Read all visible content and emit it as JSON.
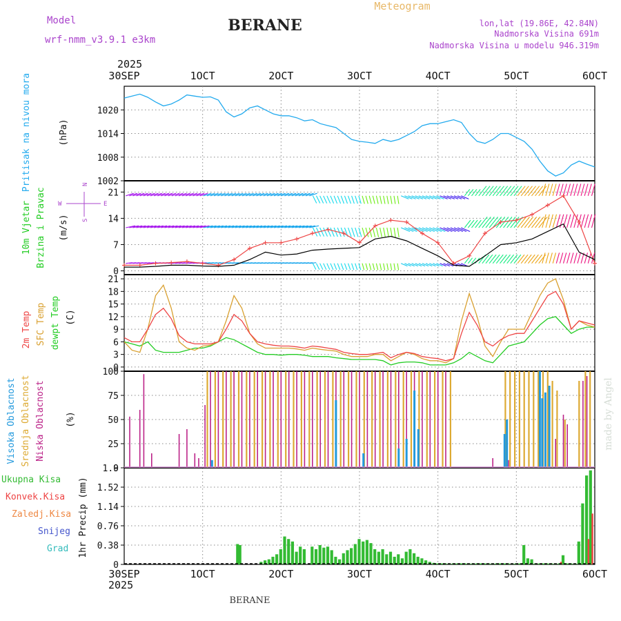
{
  "chart_data": {
    "type": "meteogram",
    "title": "BERANE",
    "footer_label": "BERANE",
    "header": {
      "model_label": "Model",
      "model_name": "wrf-nmm_v3.9.1 e3km",
      "product_label": "Meteogram",
      "coords": "lon,lat (19.86E, 42.84N)",
      "elevation": "Nadmorska Visina 691m",
      "model_elevation": "Nadmorska Visina u modelu 946.319m"
    },
    "watermark": "made by Angel",
    "colors": {
      "pressure": "#22aaee",
      "wind_speed": "#000000",
      "wind_gust": "#ee4444",
      "t2m": "#ee4444",
      "sfc": "#d9a030",
      "dewpt": "#22cc22",
      "cloud_high": "#2299dd",
      "cloud_mid": "#ddaa33",
      "cloud_low": "#bb2288",
      "total_precip": "#33bb33",
      "conv_precip": "#ee4444",
      "snow": "#4455cc",
      "header_purple": "#aa44cc",
      "header_orange": "#e8b868"
    },
    "time_axis": {
      "year": "2025",
      "ticks": [
        "30SEP",
        "1OCT",
        "2OCT",
        "3OCT",
        "4OCT",
        "5OCT",
        "6OCT"
      ],
      "days_range": [
        0,
        6
      ]
    },
    "panels": {
      "pressure": {
        "ylabel_line1": "Pritisak na nivou mora",
        "unit": "(hPa)",
        "yticks": [
          1002,
          1008,
          1014,
          1020
        ],
        "ylim": [
          1002,
          1026
        ],
        "series": {
          "x": [
            0,
            0.1,
            0.2,
            0.3,
            0.4,
            0.5,
            0.6,
            0.7,
            0.8,
            0.9,
            1.0,
            1.1,
            1.2,
            1.3,
            1.4,
            1.5,
            1.6,
            1.7,
            1.8,
            1.9,
            2.0,
            2.1,
            2.2,
            2.3,
            2.4,
            2.5,
            2.6,
            2.7,
            2.8,
            2.9,
            3.0,
            3.1,
            3.2,
            3.3,
            3.4,
            3.5,
            3.6,
            3.7,
            3.8,
            3.9,
            4.0,
            4.1,
            4.2,
            4.3,
            4.4,
            4.5,
            4.6,
            4.7,
            4.8,
            4.9,
            5.0,
            5.1,
            5.2,
            5.3,
            5.4,
            5.5,
            5.6,
            5.7,
            5.8,
            5.9,
            6.0
          ],
          "values": [
            1023,
            1023.5,
            1024,
            1023.2,
            1022,
            1021,
            1021.5,
            1022.5,
            1023.8,
            1023.5,
            1023.2,
            1023.3,
            1022.5,
            1019.5,
            1018.2,
            1019,
            1020.5,
            1021,
            1020,
            1019,
            1018.5,
            1018.5,
            1018,
            1017.2,
            1017.5,
            1016.5,
            1016,
            1015.5,
            1014,
            1012.5,
            1012,
            1011.8,
            1011.5,
            1012.5,
            1012,
            1012.5,
            1013.5,
            1014.5,
            1016,
            1016.5,
            1016.5,
            1017,
            1017.5,
            1016.8,
            1014,
            1012,
            1011.5,
            1012.5,
            1014,
            1014,
            1013,
            1012,
            1010,
            1007,
            1004.5,
            1003.2,
            1004,
            1006,
            1007,
            1006.2,
            1005.5
          ]
        }
      },
      "wind": {
        "ylabel_line1": "10m Vjetar",
        "ylabel_line2": "Brzina i Pravac",
        "unit": "(m/s)",
        "compass_n": "N",
        "compass_s": "S",
        "compass_e": "E",
        "compass_w": "W",
        "yticks": [
          0,
          7,
          14,
          21
        ],
        "ylim": [
          -1,
          24
        ],
        "x": [
          0,
          0.2,
          0.4,
          0.6,
          0.8,
          1.0,
          1.2,
          1.4,
          1.6,
          1.8,
          2.0,
          2.2,
          2.4,
          2.6,
          2.8,
          3.0,
          3.2,
          3.4,
          3.6,
          3.8,
          4.0,
          4.2,
          4.4,
          4.6,
          4.8,
          5.0,
          5.2,
          5.4,
          5.6,
          5.8,
          6.0
        ],
        "speed": [
          1,
          1,
          1.2,
          1.5,
          1.5,
          1.3,
          1.2,
          1.5,
          3,
          5,
          4.2,
          4.5,
          5.5,
          5.8,
          6,
          6.2,
          8.5,
          9.2,
          8,
          6,
          4,
          1.5,
          1.2,
          4,
          7,
          7.5,
          8.5,
          10.5,
          12.5,
          5,
          3
        ],
        "gust": [
          1.5,
          1.5,
          2,
          2.2,
          2.5,
          2,
          1.5,
          3,
          6,
          7.5,
          7.5,
          8.5,
          10,
          11,
          10,
          7.5,
          12,
          13.5,
          13,
          10,
          7.5,
          2,
          4,
          10,
          13,
          13.5,
          15,
          17.5,
          20,
          13,
          2
        ]
      },
      "temperature": {
        "ylabel_t2m": "2m Temp",
        "ylabel_sfc": "SFC Temp",
        "ylabel_dew": "dewpt Temp",
        "unit": "(C)",
        "yticks": [
          0,
          3,
          6,
          9,
          12,
          15,
          18,
          21
        ],
        "ylim": [
          -1,
          22
        ],
        "x": [
          0,
          0.1,
          0.2,
          0.3,
          0.4,
          0.5,
          0.6,
          0.7,
          0.8,
          0.9,
          1.0,
          1.1,
          1.2,
          1.3,
          1.4,
          1.5,
          1.6,
          1.7,
          1.8,
          1.9,
          2.0,
          2.1,
          2.2,
          2.3,
          2.4,
          2.5,
          2.6,
          2.7,
          2.8,
          2.9,
          3.0,
          3.1,
          3.2,
          3.3,
          3.4,
          3.5,
          3.6,
          3.7,
          3.8,
          3.9,
          4.0,
          4.1,
          4.2,
          4.3,
          4.4,
          4.5,
          4.6,
          4.7,
          4.8,
          4.9,
          5.0,
          5.1,
          5.2,
          5.3,
          5.4,
          5.5,
          5.6,
          5.7,
          5.8,
          5.9,
          6.0
        ],
        "t2m": [
          7,
          6,
          6,
          9,
          12.5,
          14,
          11.5,
          7.5,
          6,
          5.5,
          5.5,
          5.5,
          6,
          9,
          12.5,
          11,
          8,
          6,
          5.5,
          5.2,
          5,
          5,
          4.8,
          4.5,
          5,
          4.8,
          4.5,
          4.2,
          3.5,
          3.2,
          3,
          3,
          3.2,
          3.5,
          2.2,
          3,
          3.5,
          3.2,
          2.5,
          2.2,
          2,
          1.5,
          2,
          8,
          13,
          10,
          6,
          5,
          6.5,
          7.5,
          8,
          8,
          11,
          14,
          17,
          18,
          15,
          9,
          11,
          10.5,
          10
        ],
        "sfc": [
          6,
          4,
          3.5,
          9,
          17,
          19.5,
          14,
          6,
          4.5,
          4,
          5,
          5.2,
          6,
          11,
          17,
          14,
          8,
          5.5,
          4.5,
          4.5,
          4.5,
          4.5,
          4.3,
          4,
          4.5,
          4.2,
          4,
          3.8,
          3,
          2.5,
          2.5,
          2.5,
          3,
          3,
          1.5,
          2.5,
          3.5,
          3,
          2,
          1.5,
          1.5,
          1,
          2,
          11,
          17.5,
          12,
          5,
          2.5,
          6,
          9,
          9,
          9,
          13,
          17,
          20,
          21,
          16,
          9,
          11,
          10,
          9.5
        ],
        "dew": [
          6,
          5.5,
          5,
          6,
          4,
          3.5,
          3.5,
          3.5,
          4,
          4.5,
          4.5,
          5,
          6,
          7,
          6.5,
          5.5,
          4.5,
          3.5,
          3,
          3,
          2.8,
          3,
          3,
          2.8,
          2.5,
          2.5,
          2.5,
          2.2,
          2,
          1.8,
          1.8,
          1.8,
          1.8,
          1.5,
          0.5,
          1,
          1.2,
          1.2,
          1,
          0.5,
          0.5,
          0.5,
          1,
          2,
          3.5,
          2.5,
          1.5,
          1,
          3,
          5,
          5.5,
          6,
          8,
          10,
          11.5,
          12,
          10,
          8,
          9,
          9.5,
          9.5
        ]
      },
      "clouds": {
        "ylabel_high": "Visoka Oblacnost",
        "ylabel_mid": "Srednja Oblacnost",
        "ylabel_low": "Niska Oblacnost",
        "unit": "(%)",
        "yticks": [
          0,
          25,
          50,
          75,
          100
        ],
        "ylim": [
          0,
          100
        ],
        "low_x": [
          0.07,
          0.2,
          0.25,
          0.35,
          0.7,
          0.8,
          0.9,
          0.95,
          1.03,
          1.1,
          1.2,
          1.3,
          1.4,
          1.5,
          1.6,
          1.7,
          1.8,
          1.9,
          2.0,
          2.1,
          2.2,
          2.3,
          2.4,
          2.5,
          2.6,
          2.7,
          2.8,
          2.9,
          3.0,
          3.1,
          3.2,
          3.3,
          3.4,
          3.5,
          3.6,
          3.7,
          3.8,
          3.9,
          4.0,
          4.1,
          4.7,
          4.9,
          5.5,
          5.6,
          5.65,
          5.85,
          5.9
        ],
        "low_y": [
          53,
          60,
          97,
          15,
          35,
          40,
          15,
          10,
          65,
          100,
          100,
          100,
          100,
          100,
          100,
          100,
          100,
          100,
          100,
          100,
          100,
          100,
          100,
          100,
          100,
          100,
          100,
          100,
          100,
          100,
          100,
          100,
          100,
          100,
          100,
          100,
          100,
          100,
          100,
          100,
          10,
          8,
          30,
          55,
          45,
          90,
          95
        ],
        "mid_x": [
          1.06,
          1.16,
          1.26,
          1.36,
          1.46,
          1.56,
          1.66,
          1.76,
          1.86,
          1.96,
          2.06,
          2.16,
          2.26,
          2.36,
          2.46,
          2.56,
          2.66,
          2.76,
          2.86,
          2.96,
          3.06,
          3.16,
          3.26,
          3.36,
          3.46,
          3.56,
          3.66,
          3.76,
          3.86,
          3.96,
          4.06,
          4.16,
          4.86,
          4.92,
          4.98,
          5.04,
          5.1,
          5.16,
          5.22,
          5.28,
          5.34,
          5.4,
          5.46,
          5.52,
          5.62,
          5.8,
          5.88,
          5.94
        ],
        "mid_y": [
          100,
          100,
          100,
          100,
          100,
          100,
          100,
          100,
          100,
          100,
          100,
          100,
          100,
          100,
          100,
          100,
          100,
          100,
          100,
          100,
          100,
          100,
          100,
          100,
          100,
          100,
          100,
          100,
          100,
          100,
          100,
          100,
          100,
          100,
          100,
          100,
          100,
          100,
          100,
          100,
          100,
          100,
          90,
          80,
          50,
          90,
          100,
          100
        ],
        "high_x": [
          1.12,
          2.7,
          3.05,
          3.5,
          3.6,
          3.7,
          3.75,
          4.85,
          4.88,
          5.3,
          5.33,
          5.37,
          5.42
        ],
        "high_y": [
          8,
          70,
          15,
          20,
          30,
          80,
          40,
          35,
          50,
          100,
          72,
          78,
          85
        ]
      },
      "precip": {
        "ylabel_total": "Ukupna Kisa",
        "ylabel_conv": "Konvek.Kisa",
        "ylabel_ice": "Zaledj.Kisa",
        "ylabel_snow": "Snijeg",
        "ylabel_hail": "Grad",
        "unit": "1hr Precip (mm)",
        "yticks": [
          "0",
          "0.38",
          "0.76",
          "1.14",
          "1.52",
          "1.9"
        ],
        "ylim": [
          0,
          1.9
        ],
        "x": [
          1.45,
          1.48,
          1.75,
          1.8,
          1.85,
          1.9,
          1.95,
          2.0,
          2.05,
          2.1,
          2.15,
          2.2,
          2.25,
          2.3,
          2.4,
          2.45,
          2.5,
          2.55,
          2.6,
          2.65,
          2.7,
          2.75,
          2.8,
          2.85,
          2.9,
          2.95,
          3.0,
          3.05,
          3.1,
          3.15,
          3.2,
          3.25,
          3.3,
          3.35,
          3.4,
          3.45,
          3.5,
          3.55,
          3.6,
          3.65,
          3.7,
          3.75,
          3.8,
          3.85,
          3.9,
          3.95,
          4.0,
          4.05,
          4.1,
          4.15,
          4.2,
          4.25,
          4.3,
          4.35,
          4.4,
          4.45,
          4.5,
          4.55,
          4.6,
          4.65,
          4.7,
          4.75,
          4.8,
          4.85,
          4.9,
          4.95,
          5.0,
          5.05,
          5.1,
          5.15,
          5.2,
          5.25,
          5.3,
          5.35,
          5.4,
          5.45,
          5.5,
          5.55,
          5.6,
          5.65,
          5.7,
          5.75,
          5.8,
          5.85,
          5.9,
          5.95
        ],
        "values": [
          0.4,
          0.38,
          0.05,
          0.08,
          0.1,
          0.15,
          0.2,
          0.3,
          0.55,
          0.5,
          0.45,
          0.25,
          0.35,
          0.3,
          0.35,
          0.3,
          0.38,
          0.33,
          0.35,
          0.28,
          0.15,
          0.1,
          0.22,
          0.28,
          0.32,
          0.4,
          0.5,
          0.45,
          0.48,
          0.42,
          0.3,
          0.25,
          0.3,
          0.2,
          0.25,
          0.15,
          0.2,
          0.12,
          0.25,
          0.3,
          0.22,
          0.15,
          0.12,
          0.08,
          0.05,
          0.03,
          0.02,
          0.02,
          0.02,
          0.02,
          0.02,
          0.02,
          0.02,
          0.02,
          0.02,
          0.02,
          0.02,
          0.02,
          0.02,
          0.02,
          0.02,
          0.02,
          0.02,
          0.02,
          0.02,
          0.02,
          0.02,
          0.02,
          0.38,
          0.12,
          0.1,
          0.02,
          0.02,
          0.02,
          0.02,
          0.02,
          0.02,
          0.02,
          0.18,
          0.02,
          0.02,
          0.02,
          0.45,
          1.2,
          1.75,
          1.85
        ],
        "conv_x": [
          5.55,
          5.9,
          5.95
        ],
        "conv_values": [
          0.05,
          0.5,
          1.0
        ]
      }
    }
  }
}
